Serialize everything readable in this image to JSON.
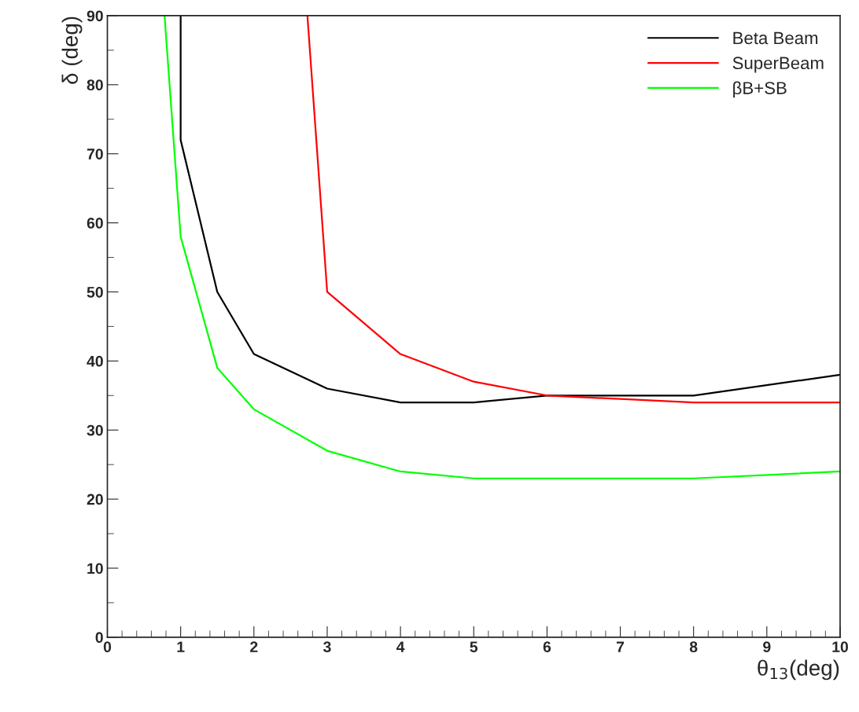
{
  "chart_data": {
    "type": "line",
    "xlabel": "θ$_{13}$(deg)",
    "ylabel": "δ (deg)",
    "xlim": [
      0,
      10
    ],
    "ylim": [
      0,
      90
    ],
    "xticks": [
      0,
      1,
      2,
      3,
      4,
      5,
      6,
      7,
      8,
      9,
      10
    ],
    "yticks": [
      0,
      10,
      20,
      30,
      40,
      50,
      60,
      70,
      80,
      90
    ],
    "grid": false,
    "legend": "top right",
    "marker": "none",
    "line_style": "solid",
    "series": [
      {
        "name": "Beta Beam",
        "color": "#000000",
        "x": [
          1,
          1,
          1.5,
          2,
          3,
          4,
          5,
          6,
          7,
          8,
          10
        ],
        "values": [
          90,
          72,
          50,
          41,
          36,
          34,
          34,
          35,
          35,
          35,
          38
        ]
      },
      {
        "name": "SuperBeam",
        "color": "#ff0000",
        "x": [
          2.73,
          3,
          4,
          5,
          6,
          7,
          8,
          10
        ],
        "values": [
          90,
          50,
          41,
          37,
          35,
          34.5,
          34,
          34
        ]
      },
      {
        "name": "βB+SB",
        "color": "#00ff00",
        "x": [
          0.78,
          1,
          1.5,
          2,
          3,
          4,
          5,
          8,
          10
        ],
        "values": [
          90,
          58,
          39,
          33,
          27,
          24,
          23,
          23,
          24
        ]
      }
    ]
  }
}
